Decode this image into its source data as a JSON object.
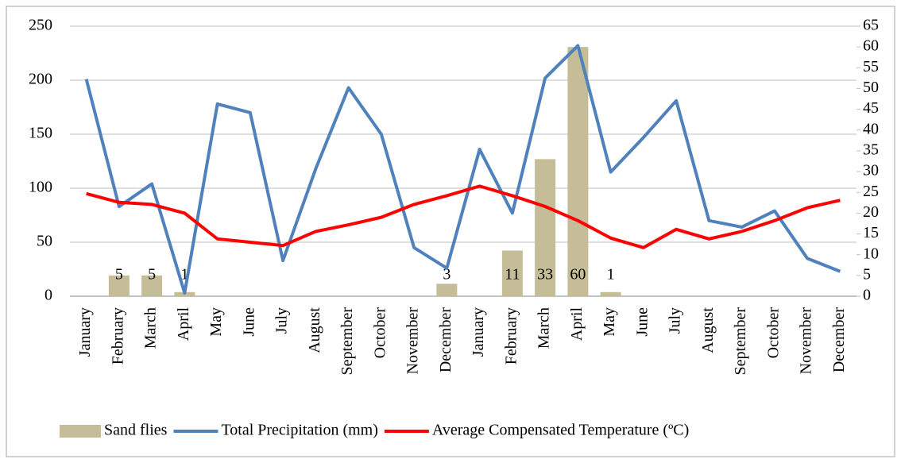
{
  "chart_data": {
    "type": "combo",
    "categories": [
      "January",
      "February",
      "March",
      "April",
      "May",
      "June",
      "July",
      "August",
      "September",
      "October",
      "November",
      "December",
      "January",
      "February",
      "March",
      "April",
      "May",
      "June",
      "July",
      "August",
      "September",
      "October",
      "November",
      "December"
    ],
    "ylim": [
      0,
      250
    ],
    "yticks": [
      0,
      50,
      100,
      150,
      200,
      250
    ],
    "y2lim": [
      0,
      65
    ],
    "y2ticks": [
      0,
      5,
      10,
      15,
      20,
      25,
      30,
      35,
      40,
      45,
      50,
      55,
      60,
      65
    ],
    "grid": true,
    "legend": "bottom",
    "series": [
      {
        "name": "Sand flies",
        "type": "bar",
        "axis": "y2",
        "color": "#c4bd97",
        "values": [
          null,
          5,
          5,
          1,
          null,
          null,
          null,
          null,
          null,
          null,
          null,
          3,
          null,
          11,
          33,
          60,
          1,
          null,
          null,
          null,
          null,
          null,
          null,
          null
        ]
      },
      {
        "name": "Total Precipitation (mm)",
        "type": "line",
        "color": "#4f81bd",
        "values": [
          201,
          83,
          104,
          3,
          178,
          170,
          33,
          118,
          193,
          150,
          45,
          26,
          136,
          77,
          202,
          232,
          115,
          147,
          181,
          70,
          64,
          79,
          35,
          23
        ]
      },
      {
        "name": "Average Compensated Temperature (ºC)",
        "type": "line",
        "axis": "y2",
        "color": "#ff0000",
        "values": [
          24.7,
          22.6,
          22.1,
          20,
          13.8,
          13,
          12.2,
          15.6,
          17.2,
          19,
          22.1,
          24.2,
          26.5,
          24.2,
          21.6,
          18.2,
          14,
          11.7,
          16.1,
          13.8,
          15.6,
          18.2,
          21.3,
          23.1
        ]
      }
    ]
  }
}
